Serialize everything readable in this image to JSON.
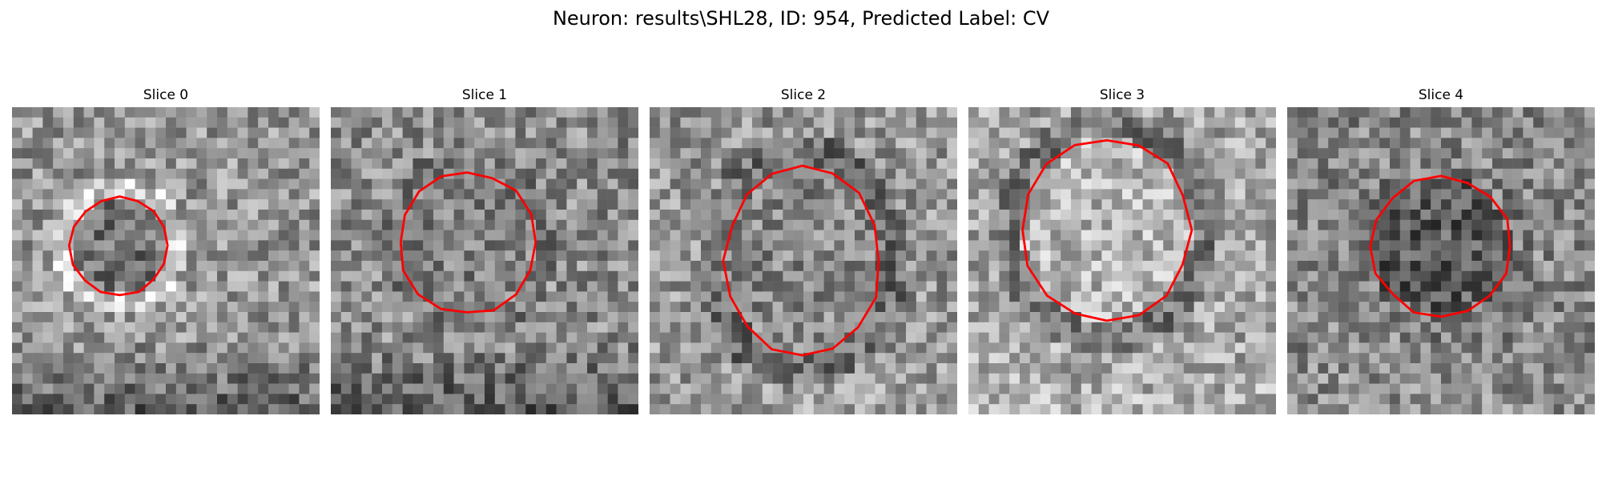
{
  "figure": {
    "title": "Neuron: results\\SHL28, ID: 954, Predicted Label: CV",
    "colormap": "gray",
    "contour_color": "#ff0000"
  },
  "panels": [
    {
      "title": "Slice 0"
    },
    {
      "title": "Slice 1"
    },
    {
      "title": "Slice 2"
    },
    {
      "title": "Slice 3"
    },
    {
      "title": "Slice 4"
    }
  ]
}
